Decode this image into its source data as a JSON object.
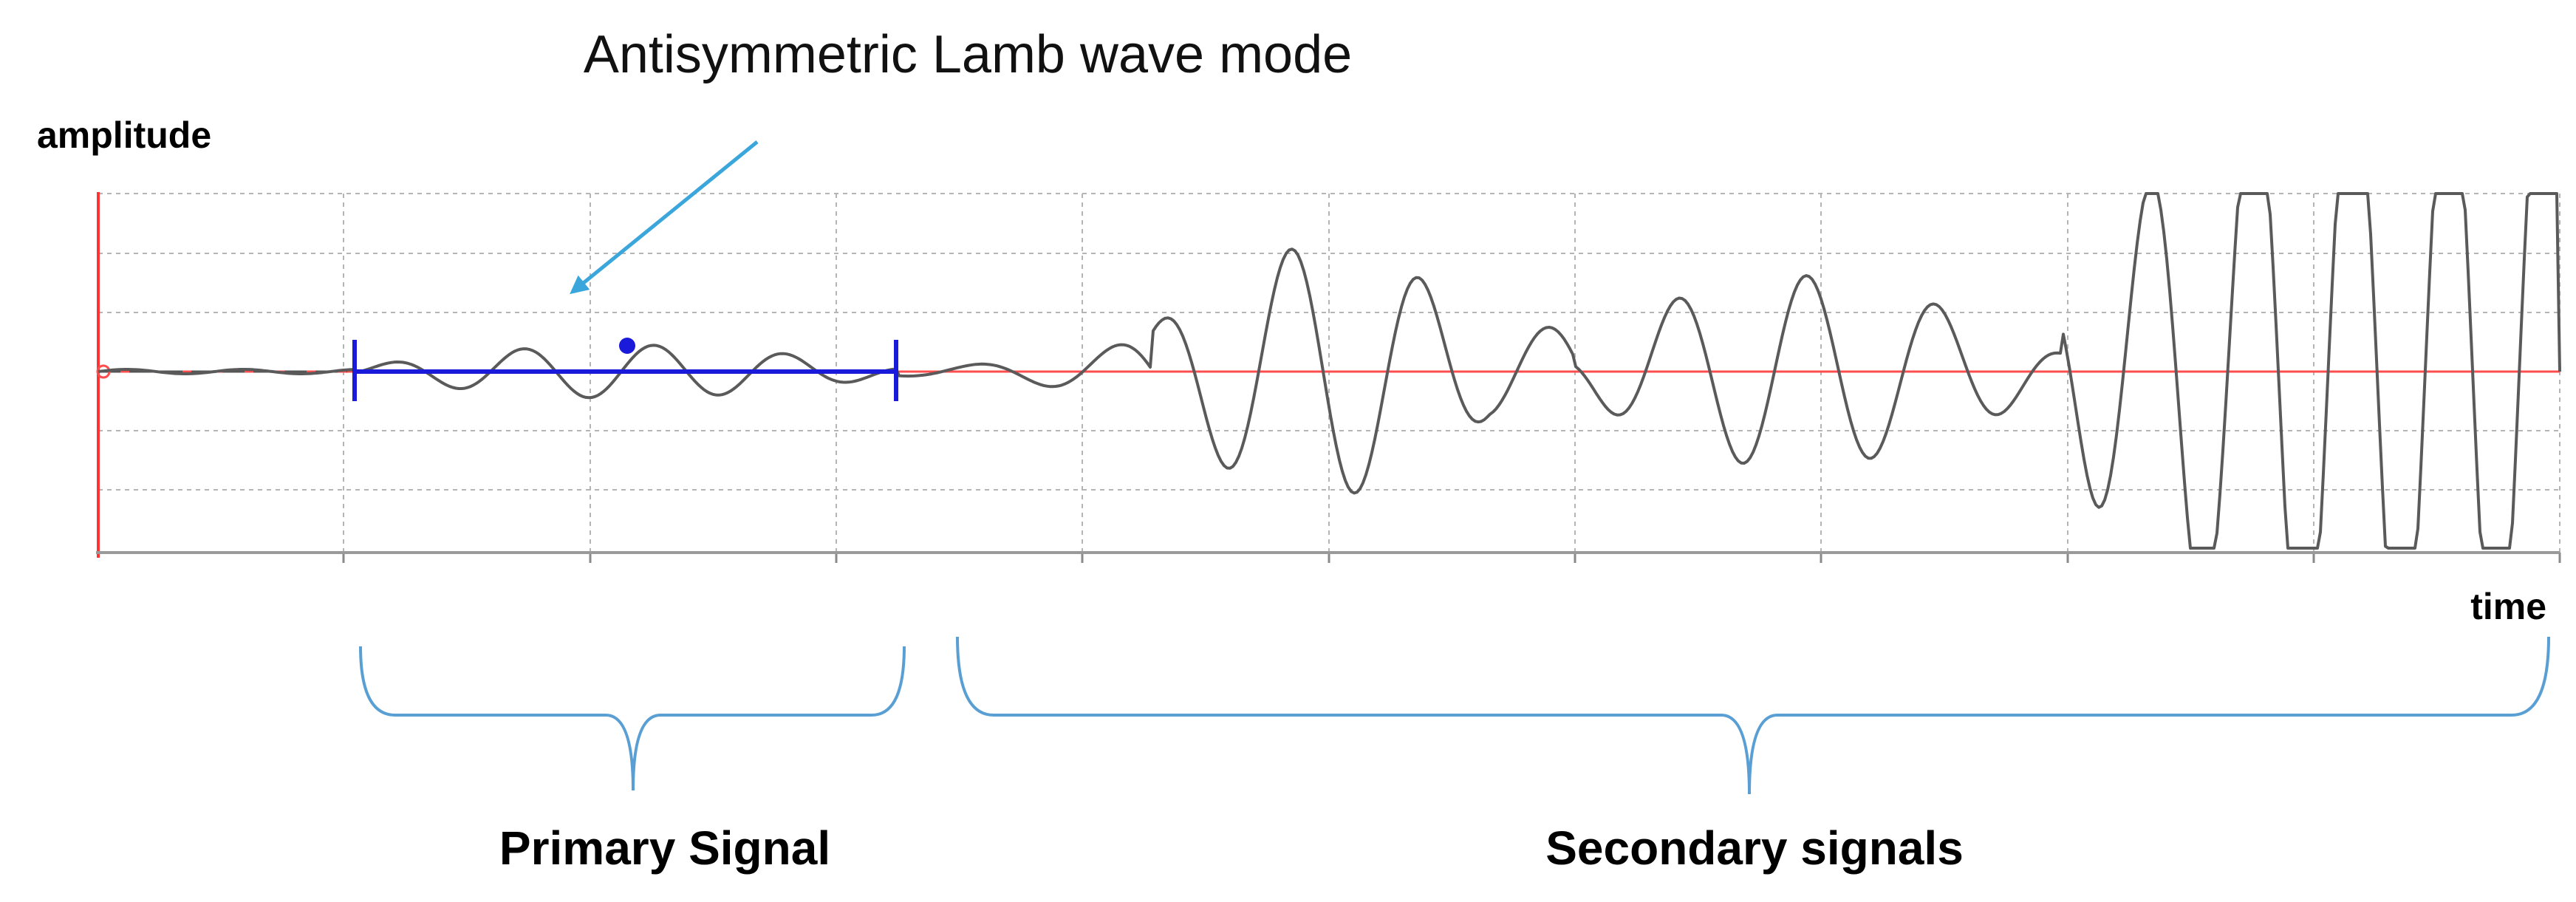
{
  "title": "Antisymmetric Lamb wave mode",
  "axes": {
    "y_label": "amplitude",
    "x_label": "time"
  },
  "groups": {
    "primary": {
      "label": "Primary Signal"
    },
    "secondary": {
      "label": "Secondary signals"
    }
  },
  "colors": {
    "waveform": "#5a5a5a",
    "baseline": "#ff4d4d",
    "primary_marker": "#1a1adb",
    "arrow": "#3aa6dc",
    "brace": "#5a9fd4",
    "grid": "#b5b5b5",
    "left_axis": "#ff3333"
  }
}
